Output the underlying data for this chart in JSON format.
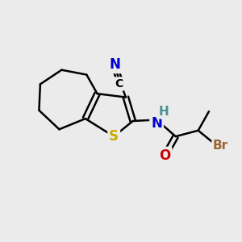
{
  "background_color": "#ebebeb",
  "atom_colors": {
    "C": "#000000",
    "N": "#0000cc",
    "S": "#ccaa00",
    "O": "#cc0000",
    "Br": "#996633",
    "H": "#4a9090",
    "CN_N": "#0000cc"
  },
  "bond_color": "#000000",
  "bond_width": 1.8,
  "font_size_atoms": 11,
  "fig_width": 3.0,
  "fig_height": 3.0,
  "dpi": 100
}
